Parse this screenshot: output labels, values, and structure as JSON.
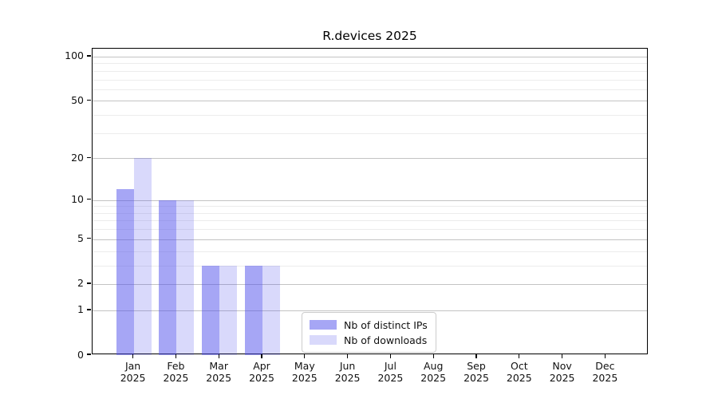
{
  "chart_data": {
    "type": "bar",
    "title": "R.devices 2025",
    "categories": [
      "Jan",
      "Feb",
      "Mar",
      "Apr",
      "May",
      "Jun",
      "Jul",
      "Aug",
      "Sep",
      "Oct",
      "Nov",
      "Dec"
    ],
    "category_year": "2025",
    "series": [
      {
        "name": "Nb of distinct IPs",
        "color": "#a6a6f5",
        "fill": "rgba(77,77,235,0.5)",
        "values": [
          12,
          10,
          3,
          3,
          0,
          0,
          0,
          0,
          0,
          0,
          0,
          0
        ]
      },
      {
        "name": "Nb of downloads",
        "color": "#d9d9fa",
        "fill": "rgba(77,77,235,0.21)",
        "values": [
          20,
          10,
          3,
          3,
          0,
          0,
          0,
          0,
          0,
          0,
          0,
          0
        ]
      }
    ],
    "y_axis": {
      "scale": "log1p",
      "ticks": [
        0,
        1,
        2,
        5,
        10,
        20,
        50,
        100
      ],
      "minor_ticks": [
        3,
        4,
        6,
        7,
        8,
        9,
        30,
        40,
        60,
        70,
        80,
        90
      ],
      "range": [
        0,
        110
      ]
    },
    "legend": {
      "entries": [
        "Nb of distinct IPs",
        "Nb of downloads"
      ],
      "position": "lower center"
    },
    "grid": {
      "on": true,
      "major_color": "#c3c3c3",
      "minor_color": "#ececec"
    }
  }
}
